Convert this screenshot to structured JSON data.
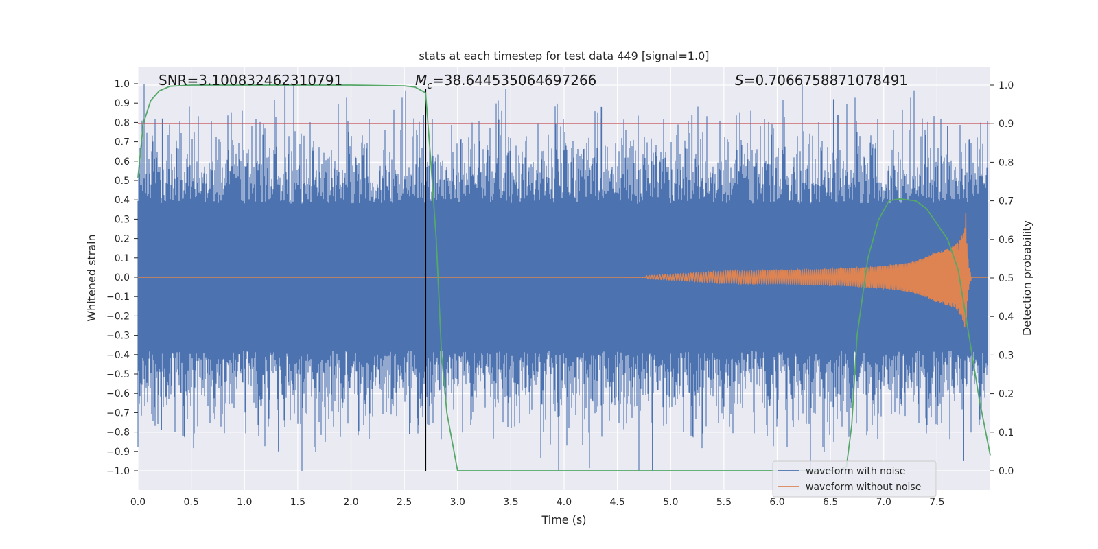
{
  "chart_data": {
    "type": "line",
    "title": "stats at each timestep for test data 449 [signal=1.0]",
    "xlabel": "Time (s)",
    "ylabel_left": "Whitened strain",
    "ylabel_right": "Detection probability",
    "xlim": [
      0.0,
      8.0
    ],
    "ylim_left": [
      -1.1,
      1.1
    ],
    "ylim_right": [
      0.0,
      1.0
    ],
    "x_ticks": [
      "0.0",
      "0.5",
      "1.0",
      "1.5",
      "2.0",
      "2.5",
      "3.0",
      "3.5",
      "4.0",
      "4.5",
      "5.0",
      "5.5",
      "6.0",
      "6.5",
      "7.0",
      "7.5"
    ],
    "y_ticks_left": [
      "1.0",
      "0.9",
      "0.8",
      "0.7",
      "0.6",
      "0.5",
      "0.4",
      "0.3",
      "0.2",
      "0.1",
      "0.0",
      "−0.1",
      "−0.2",
      "−0.3",
      "−0.4",
      "−0.5",
      "−0.6",
      "−0.7",
      "−0.8",
      "−0.9",
      "−1.0"
    ],
    "y_ticks_right": [
      "1.0",
      "0.9",
      "0.8",
      "0.7",
      "0.6",
      "0.5",
      "0.4",
      "0.3",
      "0.2",
      "0.1",
      "0.0"
    ],
    "grid": true,
    "legend_position": "bottom-right",
    "annotations": {
      "snr": "SNR=3.100832462310791",
      "mc_symbol": "M",
      "mc_sub": "c",
      "mc_value": "=38.644535064697266",
      "s_symbol": "S",
      "s_value": "=0.7066758871078491"
    },
    "threshold_right": 0.9,
    "detection_time": 2.7,
    "series": [
      {
        "name": "waveform with noise",
        "color": "#4c72b0",
        "type": "noise-band",
        "typical_amplitude": 0.4,
        "peak_amplitude": 1.0
      },
      {
        "name": "waveform without noise",
        "color": "#dd8452",
        "type": "chirp",
        "start": 4.5,
        "merger_time": 7.77,
        "peak_amplitude": 0.33
      },
      {
        "name": "Detection probability",
        "color": "#55a868",
        "axis": "right",
        "x": [
          0.0,
          0.05,
          0.12,
          0.2,
          0.3,
          0.5,
          1.0,
          1.5,
          2.0,
          2.5,
          2.6,
          2.7,
          2.75,
          2.8,
          2.85,
          2.9,
          3.0,
          3.5,
          4.0,
          4.5,
          5.0,
          5.5,
          6.0,
          6.4,
          6.55,
          6.65,
          6.7,
          6.75,
          6.85,
          6.95,
          7.05,
          7.15,
          7.3,
          7.4,
          7.5,
          7.6,
          7.7,
          7.8,
          7.9,
          8.0
        ],
        "y": [
          0.76,
          0.9,
          0.96,
          0.985,
          0.997,
          1.0,
          1.0,
          1.0,
          1.0,
          0.998,
          0.995,
          0.98,
          0.8,
          0.6,
          0.3,
          0.15,
          0.0,
          0.0,
          0.0,
          0.0,
          0.0,
          0.0,
          0.0,
          0.0,
          0.0,
          0.01,
          0.12,
          0.35,
          0.55,
          0.65,
          0.7,
          0.705,
          0.7,
          0.68,
          0.64,
          0.6,
          0.52,
          0.35,
          0.18,
          0.04
        ]
      }
    ]
  },
  "legend": {
    "items": [
      {
        "label": "waveform with noise",
        "color": "#4c72b0"
      },
      {
        "label": "waveform without noise",
        "color": "#dd8452"
      }
    ]
  },
  "colors": {
    "plot_bg": "#eaeaf2",
    "grid": "#ffffff",
    "threshold": "#c44e52",
    "marker": "#000000"
  }
}
